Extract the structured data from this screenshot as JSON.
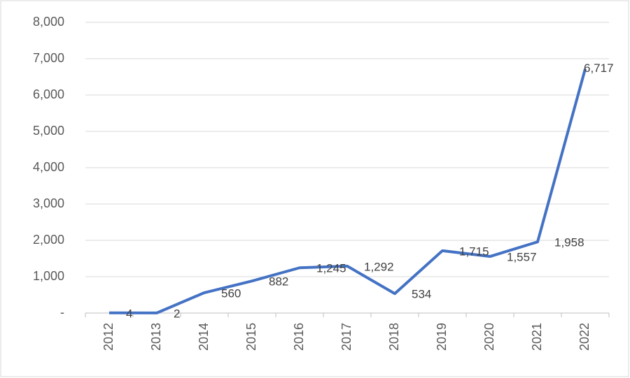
{
  "chart_data": {
    "type": "line",
    "categories": [
      "2012",
      "2013",
      "2014",
      "2015",
      "2016",
      "2017",
      "2018",
      "2019",
      "2020",
      "2021",
      "2022"
    ],
    "series": [
      {
        "color": "#4472c4",
        "values": [
          4,
          2,
          560,
          882,
          1245,
          1292,
          534,
          1715,
          1557,
          1958,
          6717
        ],
        "value_labels": [
          "4",
          "2",
          "560",
          "882",
          "1,245",
          "1,292",
          "534",
          "1,715",
          "1,557",
          "1,958",
          "6,717"
        ]
      }
    ],
    "ylim": [
      0,
      8000
    ],
    "yticks": [
      {
        "value": 0,
        "label": "-"
      },
      {
        "value": 1000,
        "label": "1,000"
      },
      {
        "value": 2000,
        "label": "2,000"
      },
      {
        "value": 3000,
        "label": "3,000"
      },
      {
        "value": 4000,
        "label": "4,000"
      },
      {
        "value": 5000,
        "label": "5,000"
      },
      {
        "value": 6000,
        "label": "6,000"
      },
      {
        "value": 7000,
        "label": "7,000"
      },
      {
        "value": 8000,
        "label": "8,000"
      }
    ],
    "grid": true
  }
}
